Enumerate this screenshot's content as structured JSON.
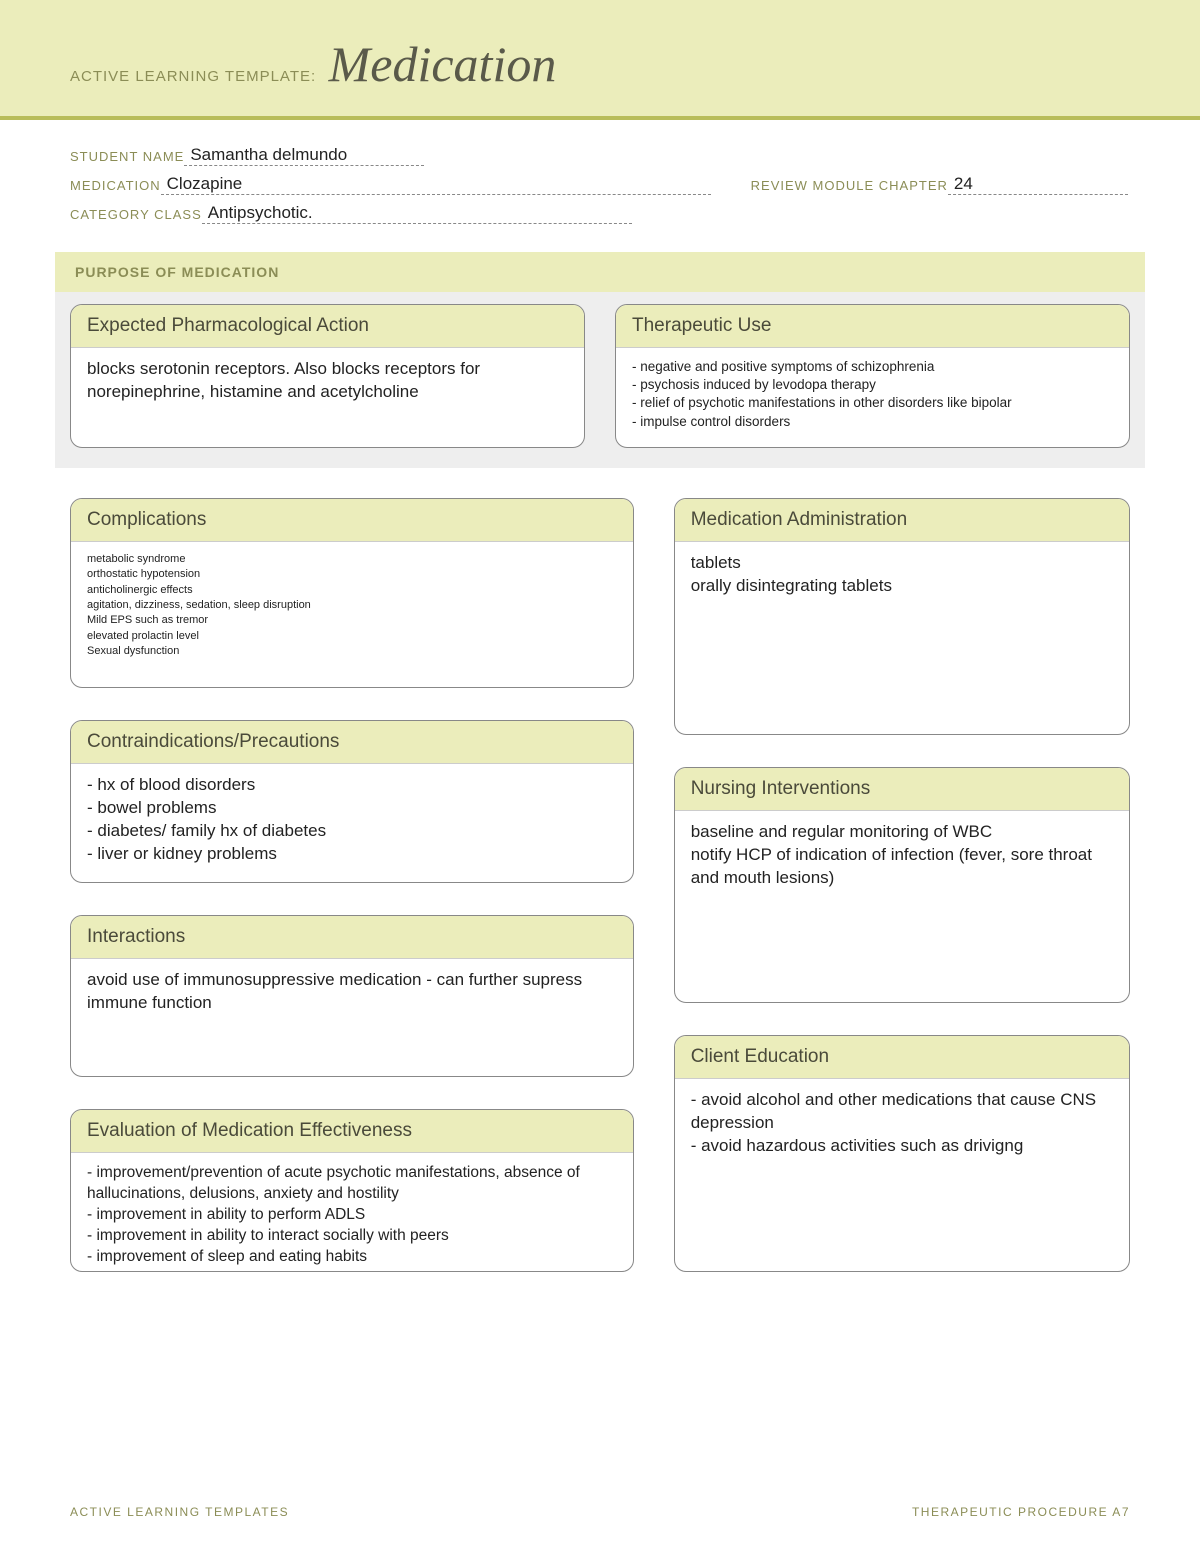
{
  "colors": {
    "banner_bg": "#ebedbb",
    "banner_border": "#b8bd5a",
    "label_text": "#8b8d56",
    "title_text": "#5a5a4a",
    "card_border": "#888888",
    "body_text": "#222222",
    "section_bg": "#eeeeee"
  },
  "banner": {
    "label": "ACTIVE LEARNING TEMPLATE:",
    "title": "Medication"
  },
  "fields": {
    "student_label": "STUDENT NAME",
    "student_value": "Samantha delmundo",
    "medication_label": "MEDICATION",
    "medication_value": "Clozapine",
    "chapter_label": "REVIEW MODULE CHAPTER",
    "chapter_value": "24",
    "category_label": "CATEGORY CLASS",
    "category_value": "Antipsychotic."
  },
  "purpose": {
    "section_title": "PURPOSE OF MEDICATION",
    "pharm": {
      "title": "Expected Pharmacological Action",
      "body": "blocks serotonin receptors. Also blocks receptors for norepinephrine, histamine and acetylcholine"
    },
    "therapeutic": {
      "title": "Therapeutic Use",
      "body": "- negative and positive symptoms of schizophrenia\n- psychosis induced by levodopa therapy\n- relief of psychotic manifestations in other disorders like bipolar\n- impulse control disorders"
    }
  },
  "left": {
    "complications": {
      "title": "Complications",
      "body": "metabolic syndrome\northostatic hypotension\nanticholinergic effects\nagitation, dizziness, sedation, sleep disruption\nMild EPS such as tremor\nelevated prolactin level\nSexual dysfunction"
    },
    "contra": {
      "title": "Contraindications/Precautions",
      "body": "- hx of blood disorders\n- bowel problems\n- diabetes/ family hx of diabetes\n- liver or kidney problems"
    },
    "interactions": {
      "title": "Interactions",
      "body": "avoid use of immunosuppressive medication - can further supress immune function"
    },
    "evaluation": {
      "title": "Evaluation of Medication Effectiveness",
      "body": "- improvement/prevention of acute psychotic manifestations, absence of hallucinations, delusions, anxiety and hostility\n- improvement in ability to perform ADLS\n- improvement in ability to interact socially with peers\n- improvement of sleep and eating habits"
    }
  },
  "right": {
    "admin": {
      "title": "Medication Administration",
      "body": "tablets\norally disintegrating tablets"
    },
    "nursing": {
      "title": "Nursing Interventions",
      "body": "baseline and regular monitoring of WBC\nnotify HCP of indication of infection (fever, sore throat and mouth lesions)"
    },
    "education": {
      "title": "Client Education",
      "body": "- avoid alcohol and other medications that cause CNS depression\n- avoid hazardous activities such as drivigng"
    }
  },
  "footer": {
    "left": "ACTIVE LEARNING TEMPLATES",
    "right": "THERAPEUTIC PROCEDURE   A7"
  }
}
